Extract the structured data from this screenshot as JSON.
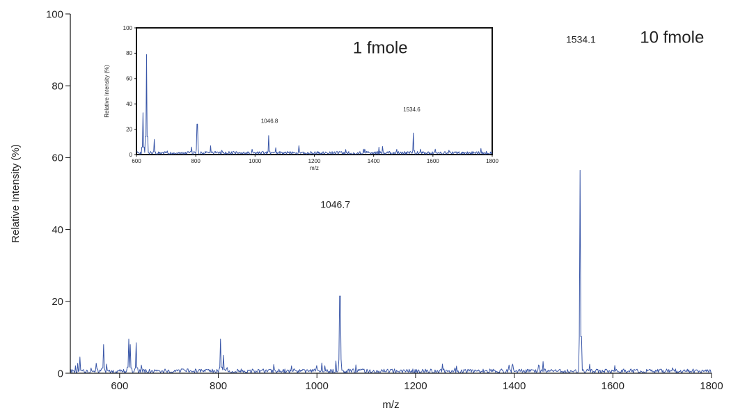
{
  "chart_data": [
    {
      "type": "line",
      "role": "main",
      "xlabel": "m/z",
      "ylabel": "Relative Intensity (%)",
      "xlim": [
        500,
        1800
      ],
      "ylim": [
        0,
        100
      ],
      "xticks": [
        600,
        800,
        1000,
        1200,
        1400,
        1600,
        1800
      ],
      "yticks": [
        0,
        20,
        40,
        60,
        80,
        100
      ],
      "x_tick_labels": [
        "600",
        "800",
        "1000",
        "1200",
        "1400",
        "1600",
        "1800"
      ],
      "y_tick_labels": [
        "0",
        "20",
        "40",
        "60",
        "80",
        "100"
      ],
      "color": "#3a57a8",
      "noise_level": 1.2,
      "annotations": [
        {
          "text": "1534.1",
          "x": 1505,
          "y": 92
        },
        {
          "text": "1046.7",
          "x": 1007,
          "y": 46
        },
        {
          "text": "10 fmole",
          "x": 1655,
          "y": 92
        }
      ],
      "peaks": [
        {
          "x": 520,
          "y": 4.5
        },
        {
          "x": 567,
          "y": 8
        },
        {
          "x": 618,
          "y": 9.5
        },
        {
          "x": 622,
          "y": 8
        },
        {
          "x": 634,
          "y": 8.5
        },
        {
          "x": 805,
          "y": 9.5
        },
        {
          "x": 810,
          "y": 5
        },
        {
          "x": 1046.7,
          "y": 21.5
        },
        {
          "x": 1534.1,
          "y": 56.5
        }
      ]
    },
    {
      "type": "line",
      "role": "inset",
      "xlabel": "m/z",
      "ylabel": "Relative Intensity (%)",
      "xlim": [
        600,
        1800
      ],
      "ylim": [
        0,
        100
      ],
      "xticks": [
        600,
        800,
        1000,
        1200,
        1400,
        1600,
        1800
      ],
      "yticks": [
        0,
        20,
        40,
        60,
        80,
        100
      ],
      "x_tick_labels": [
        "600",
        "800",
        "1000",
        "1200",
        "1400",
        "1600",
        "1800"
      ],
      "y_tick_labels": [
        "0",
        "20",
        "40",
        "60",
        "80",
        "100"
      ],
      "color": "#3a57a8",
      "noise_level": 2.5,
      "annotations": [
        {
          "text": "1 fmole",
          "x": 1330,
          "y": 80
        },
        {
          "text": "1046.8",
          "x": 1020,
          "y": 25
        },
        {
          "text": "1534.6",
          "x": 1500,
          "y": 34
        }
      ],
      "peaks": [
        {
          "x": 622,
          "y": 33
        },
        {
          "x": 634,
          "y": 79
        },
        {
          "x": 660,
          "y": 12
        },
        {
          "x": 805,
          "y": 24
        },
        {
          "x": 850,
          "y": 7
        },
        {
          "x": 1046.8,
          "y": 15
        },
        {
          "x": 1534.6,
          "y": 17
        }
      ]
    }
  ]
}
